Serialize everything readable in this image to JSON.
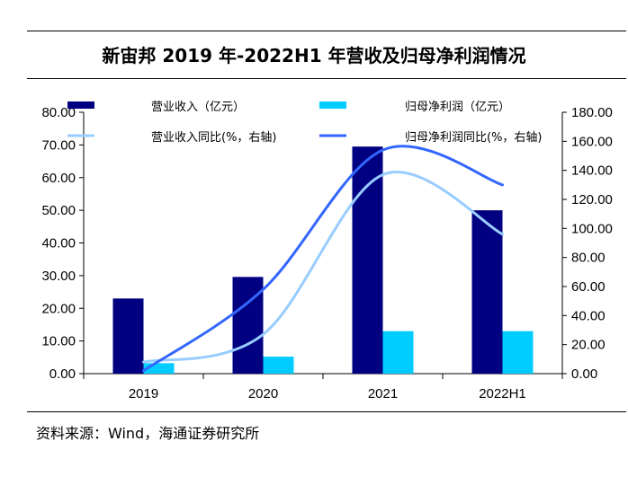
{
  "title": "新宙邦 2019 年-2022H1 年营收及归母净利润情况",
  "source": "资料来源：Wind，海通证券研究所",
  "colors": {
    "revenue": "#000080",
    "net_profit": "#00CCFF",
    "revenue_yoy": "#99CCFF",
    "net_profit_yoy": "#3366FF"
  },
  "chart_data": {
    "type": "bar",
    "categories": [
      "2019",
      "2020",
      "2021",
      "2022H1"
    ],
    "series": [
      {
        "name": "营业收入（亿元）",
        "kind": "bar",
        "axis": "left",
        "values": [
          23.0,
          29.6,
          69.5,
          50.0
        ]
      },
      {
        "name": "归母净利润（亿元）",
        "kind": "bar",
        "axis": "left",
        "values": [
          3.2,
          5.2,
          13.0,
          13.0
        ]
      },
      {
        "name": "营业收入同比(%，右轴)",
        "kind": "line",
        "axis": "right",
        "values": [
          8,
          27,
          137,
          96
        ]
      },
      {
        "name": "归母净利润同比(%，右轴)",
        "kind": "line",
        "axis": "right",
        "values": [
          2,
          58,
          154,
          130
        ]
      }
    ],
    "left_axis": {
      "min": 0,
      "max": 80,
      "step": 10,
      "tick_labels": [
        "0.00",
        "10.00",
        "20.00",
        "30.00",
        "40.00",
        "50.00",
        "60.00",
        "70.00",
        "80.00"
      ]
    },
    "right_axis": {
      "min": 0,
      "max": 180,
      "step": 20,
      "tick_labels": [
        "0.00",
        "20.00",
        "40.00",
        "60.00",
        "80.00",
        "100.00",
        "120.00",
        "140.00",
        "160.00",
        "180.00"
      ]
    },
    "legend_position": "top",
    "grid": false
  }
}
